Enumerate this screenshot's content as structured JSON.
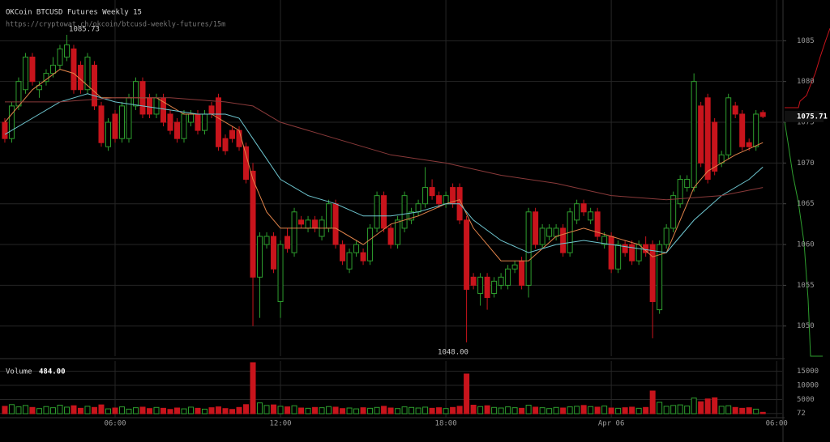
{
  "chart_data": {
    "type": "candlestick",
    "title": "OKCoin BTCUSD Futures Weekly 15",
    "subtitle": "https://cryptowat.ch/okcoin/btcusd-weekly-futures/15m",
    "up_color": "#2e9e2e",
    "down_color": "#c8141c",
    "grid": true,
    "ylim": [
      1046.3,
      1090
    ],
    "yticks": [
      1050,
      1055,
      1060,
      1065,
      1070,
      1075,
      1080,
      1085
    ],
    "xlim": [
      -0.7,
      112.8
    ],
    "xticks": [
      {
        "value": 16,
        "label": "06:00"
      },
      {
        "value": 40,
        "label": "12:00"
      },
      {
        "value": 64,
        "label": "18:00"
      },
      {
        "value": 88,
        "label": "Apr 06"
      },
      {
        "value": 112,
        "label": "06:00"
      }
    ],
    "annotations": [
      {
        "label": "1085.73",
        "value": 1085.73
      },
      {
        "label": "1048.00",
        "value": 1048
      }
    ],
    "last_price_label": "1075.71",
    "candles": [
      [
        1075,
        1075.5,
        1072.5,
        1073
      ],
      [
        1073,
        1077.5,
        1072.5,
        1077
      ],
      [
        1077,
        1080.5,
        1076.5,
        1080
      ],
      [
        1079,
        1083.5,
        1078.5,
        1083
      ],
      [
        1083,
        1083.5,
        1079.5,
        1080
      ],
      [
        1079,
        1080,
        1078,
        1079.5
      ],
      [
        1080,
        1081.5,
        1079.5,
        1081
      ],
      [
        1081,
        1083,
        1080.5,
        1082
      ],
      [
        1082,
        1084.5,
        1081.5,
        1084
      ],
      [
        1083,
        1085.73,
        1082.5,
        1084.5
      ],
      [
        1084,
        1084.5,
        1078.5,
        1079
      ],
      [
        1082,
        1082.5,
        1078.5,
        1079
      ],
      [
        1079,
        1083.5,
        1078.5,
        1083
      ],
      [
        1082,
        1082.5,
        1076.5,
        1077
      ],
      [
        1077,
        1077.5,
        1072,
        1072.5
      ],
      [
        1072,
        1075.5,
        1071.5,
        1075
      ],
      [
        1076,
        1076.5,
        1072.5,
        1073
      ],
      [
        1073,
        1077.5,
        1072.5,
        1077
      ],
      [
        1073,
        1078.5,
        1072.5,
        1078
      ],
      [
        1077,
        1080.5,
        1076.5,
        1080
      ],
      [
        1080,
        1080.5,
        1075.5,
        1076
      ],
      [
        1078,
        1078.5,
        1075.5,
        1076
      ],
      [
        1076,
        1078.5,
        1075.5,
        1078
      ],
      [
        1078,
        1078.5,
        1074.5,
        1075
      ],
      [
        1076,
        1076.5,
        1073.5,
        1074
      ],
      [
        1075,
        1075.5,
        1072.5,
        1073
      ],
      [
        1073,
        1076.5,
        1072.5,
        1076
      ],
      [
        1075,
        1076.5,
        1074.5,
        1076
      ],
      [
        1076,
        1076.5,
        1073.5,
        1074
      ],
      [
        1074,
        1076.5,
        1073.5,
        1076
      ],
      [
        1077,
        1077.5,
        1075.5,
        1076
      ],
      [
        1078,
        1078.5,
        1071.5,
        1072
      ],
      [
        1073,
        1073.5,
        1071,
        1071.5
      ],
      [
        1074,
        1074.5,
        1072.5,
        1073
      ],
      [
        1074,
        1074.5,
        1071.5,
        1072
      ],
      [
        1072,
        1072.5,
        1067.5,
        1068
      ],
      [
        1069,
        1070,
        1050,
        1056
      ],
      [
        1056,
        1061.5,
        1051,
        1061
      ],
      [
        1060,
        1061.5,
        1059.5,
        1061
      ],
      [
        1061,
        1061.5,
        1056.5,
        1057
      ],
      [
        1053,
        1060.5,
        1051,
        1060
      ],
      [
        1061,
        1062,
        1059,
        1059.5
      ],
      [
        1059,
        1064.5,
        1058.5,
        1064
      ],
      [
        1063,
        1063.5,
        1062,
        1062.5
      ],
      [
        1062,
        1063.5,
        1061.5,
        1063
      ],
      [
        1063,
        1063.5,
        1061.5,
        1062
      ],
      [
        1061,
        1063.5,
        1060.5,
        1063
      ],
      [
        1062,
        1065.5,
        1061.5,
        1065
      ],
      [
        1065,
        1065.5,
        1059.5,
        1060
      ],
      [
        1060,
        1060.5,
        1057.5,
        1058
      ],
      [
        1057,
        1059.5,
        1056.5,
        1059
      ],
      [
        1059,
        1060.5,
        1058.5,
        1060
      ],
      [
        1059,
        1059.5,
        1057.5,
        1058
      ],
      [
        1058,
        1062.5,
        1057.5,
        1062
      ],
      [
        1062,
        1066.5,
        1061.5,
        1066
      ],
      [
        1066,
        1066.5,
        1061.5,
        1062
      ],
      [
        1062,
        1062.5,
        1059.5,
        1060
      ],
      [
        1060,
        1063.5,
        1059.5,
        1063
      ],
      [
        1062,
        1066.5,
        1061.5,
        1066
      ],
      [
        1063,
        1064.5,
        1062.5,
        1064
      ],
      [
        1064,
        1065.5,
        1063.5,
        1065
      ],
      [
        1065,
        1069.5,
        1064.5,
        1067
      ],
      [
        1067,
        1068,
        1065.5,
        1066
      ],
      [
        1066,
        1066.5,
        1064.5,
        1065
      ],
      [
        1065,
        1066.5,
        1064.5,
        1066
      ],
      [
        1067,
        1067.5,
        1064.5,
        1065
      ],
      [
        1067,
        1067.5,
        1062.5,
        1063
      ],
      [
        1063,
        1063.5,
        1048,
        1054.5
      ],
      [
        1056,
        1056.5,
        1054.5,
        1055
      ],
      [
        1054,
        1056.5,
        1052.5,
        1056
      ],
      [
        1056,
        1056.5,
        1052,
        1053.5
      ],
      [
        1054,
        1056,
        1053.5,
        1055.5
      ],
      [
        1055,
        1056.5,
        1054.5,
        1056
      ],
      [
        1055,
        1057.5,
        1054.5,
        1057
      ],
      [
        1057,
        1058,
        1056.5,
        1057.5
      ],
      [
        1058,
        1058.5,
        1054.5,
        1055
      ],
      [
        1055,
        1064.5,
        1053.5,
        1064
      ],
      [
        1064,
        1064.5,
        1059.5,
        1060
      ],
      [
        1060,
        1062.5,
        1059.5,
        1062
      ],
      [
        1061,
        1062.5,
        1060.5,
        1062
      ],
      [
        1061,
        1062.5,
        1060.5,
        1062
      ],
      [
        1062,
        1062.5,
        1058.5,
        1059
      ],
      [
        1059,
        1064.5,
        1058.5,
        1064
      ],
      [
        1063,
        1065.5,
        1062.5,
        1065
      ],
      [
        1065,
        1065.5,
        1063.5,
        1064
      ],
      [
        1063,
        1064.5,
        1062.5,
        1064
      ],
      [
        1064,
        1064.5,
        1060.5,
        1061
      ],
      [
        1060,
        1061.5,
        1059.5,
        1061
      ],
      [
        1061,
        1061.5,
        1056.5,
        1057
      ],
      [
        1057,
        1060.5,
        1056.5,
        1060
      ],
      [
        1060,
        1060.5,
        1058.5,
        1059
      ],
      [
        1060,
        1060.5,
        1057.5,
        1058
      ],
      [
        1058,
        1060.5,
        1057.5,
        1060
      ],
      [
        1060,
        1061,
        1058.5,
        1059
      ],
      [
        1060,
        1060.5,
        1048.5,
        1053
      ],
      [
        1052,
        1060.5,
        1051.5,
        1060
      ],
      [
        1060,
        1062.5,
        1059.5,
        1062
      ],
      [
        1062,
        1066.5,
        1061.5,
        1066
      ],
      [
        1065,
        1068.5,
        1064.5,
        1068
      ],
      [
        1067,
        1068.5,
        1066.5,
        1068
      ],
      [
        1067,
        1081,
        1066.5,
        1080
      ],
      [
        1077,
        1077.5,
        1069.5,
        1070
      ],
      [
        1078,
        1078.5,
        1067.5,
        1068
      ],
      [
        1075,
        1075.5,
        1068.5,
        1069
      ],
      [
        1070,
        1071.5,
        1069.5,
        1071
      ],
      [
        1071,
        1078.5,
        1070.5,
        1078
      ],
      [
        1077,
        1077.5,
        1075.5,
        1076
      ],
      [
        1076,
        1076.5,
        1071.5,
        1072
      ],
      [
        1072.5,
        1073,
        1071.5,
        1072
      ],
      [
        1072,
        1076.5,
        1071.5,
        1076
      ],
      [
        1076.2,
        1076.5,
        1075.5,
        1075.71
      ]
    ],
    "overlays": [
      {
        "color": "#e0834a",
        "x": [
          0,
          4,
          8,
          10,
          14,
          18,
          22,
          26,
          30,
          34,
          36,
          38,
          40,
          44,
          48,
          52,
          56,
          60,
          64,
          66,
          68,
          72,
          76,
          80,
          84,
          88,
          92,
          94,
          96,
          98,
          100,
          102,
          106,
          110
        ],
        "values": [
          1075,
          1079,
          1081.5,
          1081,
          1078,
          1078,
          1078,
          1076,
          1076,
          1074,
          1068,
          1064,
          1062,
          1062,
          1062,
          1060,
          1062.5,
          1063.5,
          1065,
          1065.5,
          1062,
          1058,
          1058,
          1061,
          1062,
          1061,
          1060,
          1058.5,
          1059,
          1063,
          1067,
          1069,
          1071,
          1072.5
        ]
      },
      {
        "color": "#6ec6d0",
        "x": [
          0,
          4,
          8,
          12,
          16,
          20,
          24,
          28,
          32,
          34,
          36,
          40,
          44,
          48,
          52,
          56,
          60,
          64,
          66,
          68,
          72,
          76,
          80,
          84,
          88,
          92,
          96,
          98,
          100,
          104,
          108,
          110
        ],
        "values": [
          1073.5,
          1075.5,
          1077.5,
          1078.5,
          1077.5,
          1077,
          1076.5,
          1076,
          1076,
          1075.5,
          1073,
          1068,
          1066,
          1065,
          1063.5,
          1063.5,
          1064,
          1065,
          1065,
          1063,
          1060.5,
          1059,
          1060,
          1060.5,
          1060,
          1059.5,
          1059,
          1061,
          1063,
          1066,
          1068,
          1069.5
        ]
      },
      {
        "color": "#8a3a3a",
        "x": [
          0,
          8,
          16,
          24,
          32,
          36,
          40,
          48,
          56,
          64,
          72,
          80,
          88,
          96,
          104,
          110
        ],
        "values": [
          1077.5,
          1077.5,
          1078,
          1078,
          1077.5,
          1077,
          1075,
          1073,
          1071,
          1070,
          1068.5,
          1067.5,
          1066,
          1065.5,
          1066,
          1067
        ]
      }
    ],
    "volume_title": "Volume",
    "volume_last_label": "484.00",
    "volume_ylim": [
      0,
      18000
    ],
    "volume_yticks": [
      72,
      5000,
      10000,
      15000
    ],
    "volume": [
      2600,
      3200,
      2400,
      2900,
      2200,
      1800,
      2500,
      2100,
      3000,
      2300,
      2800,
      1900,
      2600,
      2200,
      3100,
      1700,
      2000,
      2400,
      1600,
      2100,
      2300,
      1800,
      2200,
      1900,
      1500,
      2000,
      1700,
      2300,
      1900,
      1600,
      2100,
      2400,
      1800,
      1500,
      2200,
      3200,
      18000,
      3800,
      2900,
      3100,
      2600,
      2400,
      2800,
      2000,
      1900,
      2200,
      2100,
      2500,
      2300,
      1800,
      2000,
      1700,
      2100,
      1900,
      2200,
      2600,
      2000,
      1800,
      2400,
      2200,
      2000,
      2300,
      1900,
      2100,
      1800,
      2200,
      2600,
      14000,
      3000,
      2500,
      2800,
      2200,
      2000,
      2400,
      2100,
      1900,
      3000,
      2300,
      2100,
      1800,
      2200,
      2000,
      2400,
      2600,
      2900,
      2500,
      2300,
      2700,
      2000,
      1900,
      2100,
      2300,
      1900,
      2200,
      8000,
      4000,
      2600,
      2900,
      3100,
      2700,
      5500,
      4200,
      5200,
      5600,
      2600,
      2800,
      2200,
      1900,
      2100,
      1600,
      484
    ]
  }
}
